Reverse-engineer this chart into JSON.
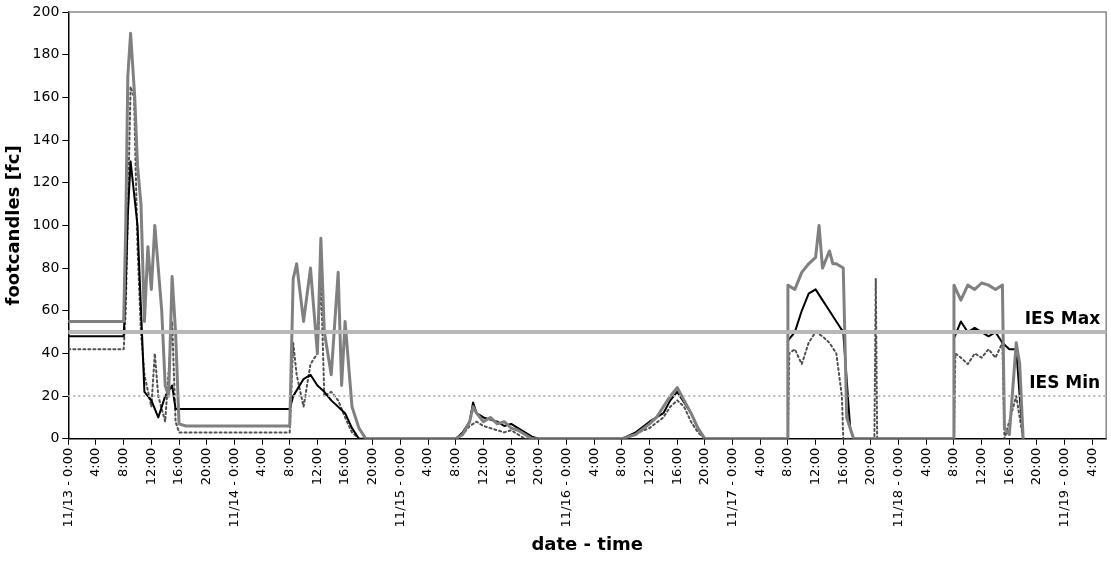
{
  "chart_data": {
    "type": "line",
    "xlabel": "date - time",
    "ylabel": "footcandles [fc]",
    "marker": "none",
    "grid": false,
    "xlim": [
      "--11-13T00:00",
      "--11-19T06:00"
    ],
    "ylim": [
      0,
      200
    ],
    "yticks": [
      0,
      20,
      40,
      60,
      80,
      100,
      120,
      140,
      160,
      180,
      200
    ],
    "xticks": [
      {
        "value": "--11-13T00:00",
        "label": "11/13 - 0:00"
      },
      {
        "value": "--11-13T04:00",
        "label": "4:00"
      },
      {
        "value": "--11-13T08:00",
        "label": "8:00"
      },
      {
        "value": "--11-13T12:00",
        "label": "12:00"
      },
      {
        "value": "--11-13T16:00",
        "label": "16:00"
      },
      {
        "value": "--11-13T20:00",
        "label": "20:00"
      },
      {
        "value": "--11-14T00:00",
        "label": "11/14 - 0:00"
      },
      {
        "value": "--11-14T04:00",
        "label": "4:00"
      },
      {
        "value": "--11-14T08:00",
        "label": "8:00"
      },
      {
        "value": "--11-14T12:00",
        "label": "12:00"
      },
      {
        "value": "--11-14T16:00",
        "label": "16:00"
      },
      {
        "value": "--11-14T20:00",
        "label": "20:00"
      },
      {
        "value": "--11-15T00:00",
        "label": "11/15 - 0:00"
      },
      {
        "value": "--11-15T04:00",
        "label": "4:00"
      },
      {
        "value": "--11-15T08:00",
        "label": "8:00"
      },
      {
        "value": "--11-15T12:00",
        "label": "12:00"
      },
      {
        "value": "--11-15T16:00",
        "label": "16:00"
      },
      {
        "value": "--11-15T20:00",
        "label": "20:00"
      },
      {
        "value": "--11-16T00:00",
        "label": "11/16 - 0:00"
      },
      {
        "value": "--11-16T04:00",
        "label": "4:00"
      },
      {
        "value": "--11-16T08:00",
        "label": "8:00"
      },
      {
        "value": "--11-16T12:00",
        "label": "12:00"
      },
      {
        "value": "--11-16T16:00",
        "label": "16:00"
      },
      {
        "value": "--11-16T20:00",
        "label": "20:00"
      },
      {
        "value": "--11-17T00:00",
        "label": "11/17 - 0:00"
      },
      {
        "value": "--11-17T04:00",
        "label": "4:00"
      },
      {
        "value": "--11-17T08:00",
        "label": "8:00"
      },
      {
        "value": "--11-17T12:00",
        "label": "12:00"
      },
      {
        "value": "--11-17T16:00",
        "label": "16:00"
      },
      {
        "value": "--11-17T20:00",
        "label": "20:00"
      },
      {
        "value": "--11-18T00:00",
        "label": "11/18 - 0:00"
      },
      {
        "value": "--11-18T04:00",
        "label": "4:00"
      },
      {
        "value": "--11-18T08:00",
        "label": "8:00"
      },
      {
        "value": "--11-18T12:00",
        "label": "12:00"
      },
      {
        "value": "--11-18T16:00",
        "label": "16:00"
      },
      {
        "value": "--11-18T20:00",
        "label": "20:00"
      },
      {
        "value": "--11-19T00:00",
        "label": "11/19 - 0:00"
      },
      {
        "value": "--11-19T04:00",
        "label": "4:00"
      }
    ],
    "ref_lines": [
      {
        "axis": "y",
        "value": 50,
        "label": "IES Max",
        "color": "#b8b8b8",
        "line_style": "solid"
      },
      {
        "axis": "y",
        "value": 20,
        "label": "IES Min",
        "color": "#b8b8b8",
        "line_style": "dotted"
      }
    ],
    "series": [
      {
        "color": "#808080",
        "line_style": "solid",
        "x": [
          "--11-13T00:00",
          "--11-13T08:00",
          "--11-13T08:18",
          "--11-13T08:36",
          "--11-13T09:00",
          "--11-13T09:18",
          "--11-13T09:36",
          "--11-13T10:00",
          "--11-13T10:30",
          "--11-13T11:00",
          "--11-13T11:30",
          "--11-13T12:00",
          "--11-13T12:30",
          "--11-13T13:00",
          "--11-13T13:30",
          "--11-13T14:00",
          "--11-13T14:30",
          "--11-13T15:00",
          "--11-13T15:30",
          "--11-13T16:00",
          "--11-13T17:00",
          "--11-14T08:00",
          "--11-14T08:30",
          "--11-14T09:00",
          "--11-14T10:00",
          "--11-14T11:00",
          "--11-14T12:00",
          "--11-14T12:30",
          "--11-14T13:00",
          "--11-14T14:00",
          "--11-14T15:00",
          "--11-14T15:30",
          "--11-14T16:00",
          "--11-14T17:00",
          "--11-14T18:00",
          "--11-14T19:00",
          "--11-15T08:00",
          "--11-15T09:00",
          "--11-15T10:00",
          "--11-15T10:30",
          "--11-15T11:00",
          "--11-15T12:00",
          "--11-15T13:00",
          "--11-15T14:00",
          "--11-15T15:00",
          "--11-15T16:00",
          "--11-15T17:00",
          "--11-15T18:00",
          "--11-15T19:00",
          "--11-16T08:00",
          "--11-16T10:00",
          "--11-16T12:00",
          "--11-16T13:00",
          "--11-16T14:00",
          "--11-16T15:00",
          "--11-16T16:00",
          "--11-16T17:00",
          "--11-16T18:00",
          "--11-16T19:00",
          "--11-16T20:00",
          "--11-17T07:54",
          "--11-17T08:00",
          "--11-17T09:00",
          "--11-17T10:00",
          "--11-17T11:00",
          "--11-17T12:00",
          "--11-17T12:30",
          "--11-17T13:00",
          "--11-17T14:00",
          "--11-17T14:30",
          "--11-17T15:00",
          "--11-17T16:00",
          "--11-17T16:30",
          "--11-17T17:30",
          "--11-18T07:54",
          "--11-18T08:00",
          "--11-18T09:00",
          "--11-18T10:00",
          "--11-18T11:00",
          "--11-18T12:00",
          "--11-18T13:00",
          "--11-18T14:00",
          "--11-18T15:00",
          "--11-18T15:18",
          "--11-18T16:00",
          "--11-18T17:00",
          "--11-18T17:30",
          "--11-18T18:00"
        ],
        "values": [
          55,
          55,
          100,
          170,
          190,
          175,
          160,
          128,
          110,
          55,
          90,
          70,
          100,
          80,
          60,
          25,
          20,
          76,
          50,
          7,
          6,
          6,
          75,
          82,
          55,
          80,
          40,
          94,
          50,
          30,
          78,
          25,
          55,
          15,
          5,
          0,
          0,
          2,
          8,
          15,
          12,
          8,
          10,
          7,
          8,
          5,
          4,
          2,
          0,
          0,
          2,
          7,
          10,
          15,
          20,
          24,
          18,
          12,
          5,
          0,
          0,
          72,
          70,
          78,
          82,
          85,
          100,
          80,
          88,
          82,
          82,
          80,
          10,
          0,
          0,
          72,
          65,
          72,
          70,
          73,
          72,
          70,
          72,
          5,
          2,
          45,
          35,
          0
        ]
      },
      {
        "color": "#000000",
        "line_style": "solid",
        "x": [
          "--11-13T00:00",
          "--11-13T08:00",
          "--11-13T08:18",
          "--11-13T08:36",
          "--11-13T09:00",
          "--11-13T09:30",
          "--11-13T10:00",
          "--11-13T11:00",
          "--11-13T12:00",
          "--11-13T13:00",
          "--11-13T14:00",
          "--11-13T15:00",
          "--11-13T15:30",
          "--11-13T16:00",
          "--11-14T08:00",
          "--11-14T08:30",
          "--11-14T10:00",
          "--11-14T11:00",
          "--11-14T12:00",
          "--11-14T13:00",
          "--11-14T14:00",
          "--11-14T16:00",
          "--11-14T17:00",
          "--11-14T18:00",
          "--11-15T08:00",
          "--11-15T09:00",
          "--11-15T10:00",
          "--11-15T10:30",
          "--11-15T11:00",
          "--11-15T12:00",
          "--11-15T13:00",
          "--11-15T14:00",
          "--11-15T15:00",
          "--11-15T16:00",
          "--11-15T17:00",
          "--11-15T18:00",
          "--11-15T19:00",
          "--11-15T20:00",
          "--11-16T08:00",
          "--11-16T10:00",
          "--11-16T12:00",
          "--11-16T13:00",
          "--11-16T14:00",
          "--11-16T15:00",
          "--11-16T16:00",
          "--11-16T17:00",
          "--11-16T18:00",
          "--11-16T19:00",
          "--11-16T20:00",
          "--11-17T07:54",
          "--11-17T08:00",
          "--11-17T09:00",
          "--11-17T10:00",
          "--11-17T11:00",
          "--11-17T12:00",
          "--11-17T13:00",
          "--11-17T14:00",
          "--11-17T15:00",
          "--11-17T16:00",
          "--11-17T17:00",
          "--11-17T17:30",
          "--11-18T07:54",
          "--11-18T08:00",
          "--11-18T09:00",
          "--11-18T10:00",
          "--11-18T11:00",
          "--11-18T12:00",
          "--11-18T13:00",
          "--11-18T14:00",
          "--11-18T15:00",
          "--11-18T16:00",
          "--11-18T17:00",
          "--11-18T17:30",
          "--11-18T18:00"
        ],
        "values": [
          48,
          48,
          72,
          105,
          130,
          115,
          100,
          22,
          18,
          10,
          20,
          25,
          14,
          14,
          14,
          20,
          28,
          30,
          25,
          22,
          18,
          12,
          5,
          0,
          0,
          3,
          8,
          17,
          12,
          10,
          9,
          8,
          6,
          7,
          5,
          3,
          1,
          0,
          0,
          3,
          8,
          10,
          12,
          18,
          22,
          17,
          12,
          5,
          0,
          0,
          46,
          50,
          60,
          68,
          70,
          65,
          60,
          55,
          50,
          5,
          0,
          0,
          47,
          55,
          50,
          52,
          50,
          48,
          50,
          45,
          42,
          42,
          20,
          0
        ]
      },
      {
        "color": "#505050",
        "line_style": "dotted",
        "x": [
          "--11-13T00:00",
          "--11-13T08:00",
          "--11-13T08:18",
          "--11-13T09:00",
          "--11-13T09:30",
          "--11-13T10:00",
          "--11-13T10:30",
          "--11-13T11:00",
          "--11-13T12:00",
          "--11-13T12:30",
          "--11-13T13:00",
          "--11-13T14:00",
          "--11-13T15:00",
          "--11-13T15:30",
          "--11-13T16:00",
          "--11-13T17:00",
          "--11-14T08:00",
          "--11-14T08:30",
          "--11-14T09:00",
          "--11-14T10:00",
          "--11-14T11:00",
          "--11-14T12:00",
          "--11-14T12:30",
          "--11-14T13:00",
          "--11-14T14:00",
          "--11-14T15:00",
          "--11-14T16:00",
          "--11-14T17:00",
          "--11-14T18:00",
          "--11-15T08:00",
          "--11-15T09:00",
          "--11-15T10:00",
          "--11-15T11:00",
          "--11-15T12:00",
          "--11-15T13:00",
          "--11-15T14:00",
          "--11-15T15:00",
          "--11-15T16:00",
          "--11-15T17:00",
          "--11-15T18:00",
          "--11-16T08:00",
          "--11-16T12:00",
          "--11-16T14:00",
          "--11-16T15:00",
          "--11-16T16:00",
          "--11-16T17:00",
          "--11-16T18:00",
          "--11-16T19:00",
          "--11-16T20:00",
          "--11-17T08:00",
          "--11-17T08:12",
          "--11-17T09:00",
          "--11-17T10:00",
          "--11-17T11:00",
          "--11-17T12:00",
          "--11-17T13:00",
          "--11-17T14:00",
          "--11-17T15:00",
          "--11-17T15:48",
          "--11-17T16:00",
          "--11-17T20:30",
          "--11-17T20:42",
          "--11-17T20:54",
          "--11-18T08:00",
          "--11-18T08:12",
          "--11-18T09:00",
          "--11-18T10:00",
          "--11-18T11:00",
          "--11-18T12:00",
          "--11-18T13:00",
          "--11-18T14:00",
          "--11-18T15:00",
          "--11-18T15:18",
          "--11-18T17:00",
          "--11-18T18:00"
        ],
        "values": [
          42,
          42,
          60,
          165,
          160,
          90,
          50,
          30,
          15,
          40,
          20,
          8,
          55,
          8,
          3,
          3,
          3,
          45,
          30,
          15,
          35,
          40,
          75,
          20,
          22,
          18,
          10,
          3,
          0,
          0,
          2,
          6,
          8,
          6,
          5,
          4,
          3,
          4,
          2,
          0,
          0,
          5,
          10,
          15,
          18,
          15,
          8,
          3,
          0,
          0,
          40,
          42,
          35,
          45,
          50,
          48,
          45,
          40,
          20,
          0,
          0,
          75,
          0,
          0,
          40,
          38,
          35,
          40,
          38,
          42,
          38,
          45,
          0,
          20,
          0
        ]
      }
    ]
  }
}
